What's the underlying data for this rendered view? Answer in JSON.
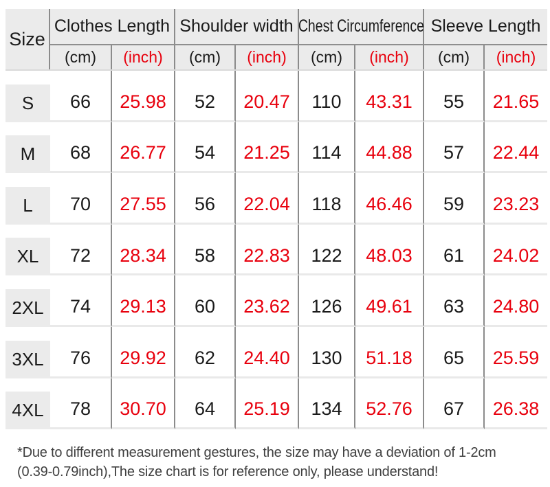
{
  "colors": {
    "accent_red": "#e8000d",
    "header_background": "#ebebeb",
    "dark_divider": "#8b8b8b",
    "row_separator": "#e9e9e9",
    "text": "#1a1a1a"
  },
  "table": {
    "corner_label": "Size",
    "groups": [
      {
        "label": "Clothes Length",
        "units": [
          "(cm)",
          "(inch)"
        ]
      },
      {
        "label": "Shoulder width",
        "units": [
          "(cm)",
          "(inch)"
        ]
      },
      {
        "label": "Chest Circumference",
        "units": [
          "(cm)",
          "(inch)"
        ]
      },
      {
        "label": "Sleeve Length",
        "units": [
          "(cm)",
          "(inch)"
        ]
      }
    ],
    "rows": [
      {
        "size": "S",
        "values": [
          "66",
          "25.98",
          "52",
          "20.47",
          "110",
          "43.31",
          "55",
          "21.65"
        ]
      },
      {
        "size": "M",
        "values": [
          "68",
          "26.77",
          "54",
          "21.25",
          "114",
          "44.88",
          "57",
          "22.44"
        ]
      },
      {
        "size": "L",
        "values": [
          "70",
          "27.55",
          "56",
          "22.04",
          "118",
          "46.46",
          "59",
          "23.23"
        ]
      },
      {
        "size": "XL",
        "values": [
          "72",
          "28.34",
          "58",
          "22.83",
          "122",
          "48.03",
          "61",
          "24.02"
        ]
      },
      {
        "size": "2XL",
        "values": [
          "74",
          "29.13",
          "60",
          "23.62",
          "126",
          "49.61",
          "63",
          "24.80"
        ]
      },
      {
        "size": "3XL",
        "values": [
          "76",
          "29.92",
          "62",
          "24.40",
          "130",
          "51.18",
          "65",
          "25.59"
        ]
      },
      {
        "size": "4XL",
        "values": [
          "78",
          "30.70",
          "64",
          "25.19",
          "134",
          "52.76",
          "67",
          "26.38"
        ]
      }
    ]
  },
  "footnote": {
    "line1": "*Due to different measurement gestures, the size may have a deviation of 1-2cm",
    "line2": "(0.39-0.79inch),The size chart is for reference only, please understand!"
  },
  "chart_data": {
    "type": "table",
    "columns": [
      "Size",
      "Clothes Length (cm)",
      "Clothes Length (inch)",
      "Shoulder width (cm)",
      "Shoulder width (inch)",
      "Chest Circumference (cm)",
      "Chest Circumference (inch)",
      "Sleeve Length (cm)",
      "Sleeve Length (inch)"
    ],
    "rows": [
      [
        "S",
        66,
        25.98,
        52,
        20.47,
        110,
        43.31,
        55,
        21.65
      ],
      [
        "M",
        68,
        26.77,
        54,
        21.25,
        114,
        44.88,
        57,
        22.44
      ],
      [
        "L",
        70,
        27.55,
        56,
        22.04,
        118,
        46.46,
        59,
        23.23
      ],
      [
        "XL",
        72,
        28.34,
        58,
        22.83,
        122,
        48.03,
        61,
        24.02
      ],
      [
        "2XL",
        74,
        29.13,
        60,
        23.62,
        126,
        49.61,
        63,
        24.8
      ],
      [
        "3XL",
        76,
        29.92,
        62,
        24.4,
        130,
        51.18,
        65,
        25.59
      ],
      [
        "4XL",
        78,
        30.7,
        64,
        25.19,
        134,
        52.76,
        67,
        26.38
      ]
    ],
    "notes": "inch columns rendered in red; cm columns in black"
  }
}
